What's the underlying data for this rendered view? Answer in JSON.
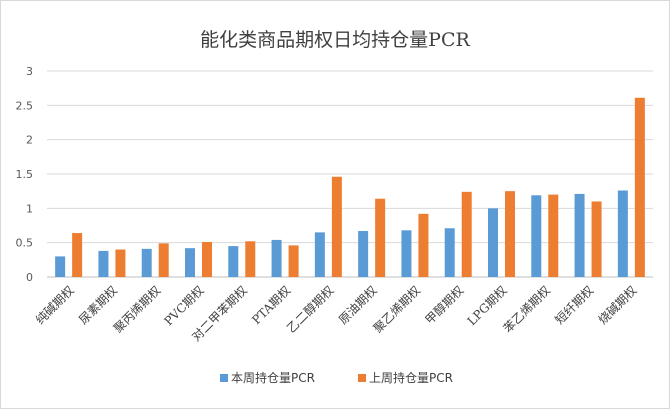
{
  "chart_data": {
    "type": "bar",
    "title": "能化类商品期权日均持仓量PCR",
    "categories": [
      "纯碱期权",
      "尿素期权",
      "聚丙烯期权",
      "PVC期权",
      "对二甲苯期权",
      "PTA期权",
      "乙二醇期权",
      "原油期权",
      "聚乙烯期权",
      "甲醇期权",
      "LPG期权",
      "苯乙烯期权",
      "短纤期权",
      "烧碱期权"
    ],
    "series": [
      {
        "name": "本周持仓量PCR",
        "color": "#5b9bd5",
        "values": [
          0.3,
          0.38,
          0.41,
          0.42,
          0.45,
          0.54,
          0.65,
          0.67,
          0.68,
          0.71,
          1.0,
          1.19,
          1.21,
          1.26
        ]
      },
      {
        "name": "上周持仓量PCR",
        "color": "#ed7d31",
        "values": [
          0.64,
          0.4,
          0.49,
          0.51,
          0.52,
          0.46,
          1.46,
          1.14,
          0.92,
          1.24,
          1.25,
          1.2,
          1.1,
          2.61
        ]
      }
    ],
    "yticks": [
      "0",
      "0.5",
      "1",
      "1.5",
      "2",
      "2.5",
      "3"
    ],
    "ylim": [
      0,
      3
    ],
    "grid": true,
    "legend": "bottom"
  }
}
